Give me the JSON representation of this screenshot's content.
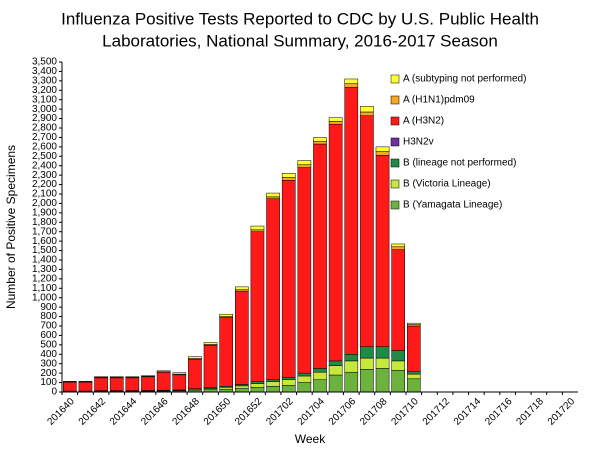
{
  "chart_data": {
    "type": "stacked-bar",
    "title": [
      "Influenza Positive Tests Reported to CDC by U.S. Public Health",
      "Laboratories, National Summary, 2016-2017 Season"
    ],
    "x_label": "Week",
    "y_label": "Number of Positive Specimens",
    "categories": [
      "201640",
      null,
      "201642",
      null,
      "201644",
      null,
      "201646",
      null,
      "201648",
      null,
      "201650",
      null,
      "201652",
      null,
      "201702",
      null,
      "201704",
      null,
      "201706",
      null,
      "201708",
      null,
      "201710",
      null,
      "201712",
      null,
      "201714",
      null,
      "201716",
      null,
      "201718",
      null,
      "201720"
    ],
    "series": [
      {
        "name": "A (subtyping not performed)",
        "color": "#ffff33",
        "values": [
          5,
          5,
          8,
          8,
          8,
          8,
          10,
          15,
          20,
          20,
          25,
          30,
          40,
          40,
          45,
          45,
          40,
          40,
          50,
          60,
          50,
          30,
          15,
          null,
          null,
          null,
          null,
          null,
          null,
          null,
          null,
          null,
          null
        ]
      },
      {
        "name": "A (H1N1)pdm09",
        "color": "#f5a623",
        "values": [
          3,
          3,
          5,
          5,
          5,
          5,
          6,
          8,
          10,
          10,
          10,
          15,
          20,
          20,
          30,
          30,
          30,
          30,
          40,
          40,
          40,
          30,
          15,
          null,
          null,
          null,
          null,
          null,
          null,
          null,
          null,
          null,
          null
        ]
      },
      {
        "name": "A (H3N2)",
        "color": "#ff1a1a",
        "values": [
          95,
          95,
          135,
          135,
          135,
          145,
          190,
          160,
          310,
          450,
          730,
          990,
          1590,
          1920,
          2090,
          2180,
          2380,
          2510,
          2830,
          2450,
          2030,
          1070,
          480,
          null,
          null,
          null,
          null,
          null,
          null,
          null,
          null,
          null,
          null
        ]
      },
      {
        "name": "H3N2v",
        "color": "#7030a0",
        "values": [
          0,
          0,
          0,
          0,
          0,
          0,
          0,
          0,
          0,
          0,
          0,
          0,
          0,
          0,
          0,
          0,
          0,
          0,
          0,
          0,
          0,
          0,
          0,
          null,
          null,
          null,
          null,
          null,
          null,
          null,
          null,
          null,
          null
        ]
      },
      {
        "name": "B (lineage not performed)",
        "color": "#1e8c45",
        "values": [
          2,
          2,
          3,
          3,
          3,
          3,
          4,
          4,
          5,
          8,
          10,
          15,
          20,
          20,
          25,
          30,
          40,
          50,
          70,
          120,
          120,
          110,
          30,
          null,
          null,
          null,
          null,
          null,
          null,
          null,
          null,
          null,
          null
        ]
      },
      {
        "name": "B (Victoria Lineage)",
        "color": "#c6e83a",
        "values": [
          3,
          3,
          4,
          4,
          4,
          5,
          5,
          6,
          10,
          12,
          20,
          25,
          40,
          50,
          60,
          70,
          80,
          100,
          120,
          120,
          110,
          100,
          50,
          null,
          null,
          null,
          null,
          null,
          null,
          null,
          null,
          null,
          null
        ]
      },
      {
        "name": "B (Yamagata Lineage)",
        "color": "#6cb33e",
        "values": [
          5,
          5,
          8,
          8,
          8,
          8,
          10,
          12,
          20,
          25,
          30,
          40,
          50,
          60,
          70,
          100,
          130,
          180,
          210,
          240,
          250,
          230,
          140,
          null,
          null,
          null,
          null,
          null,
          null,
          null,
          null,
          null,
          null
        ]
      }
    ],
    "ylim": [
      0,
      3500
    ],
    "yticks": [
      0,
      100,
      200,
      300,
      400,
      500,
      600,
      700,
      800,
      900,
      {
        "value": 1000,
        "label": "1,000"
      },
      {
        "value": 1100,
        "label": "1,100"
      },
      {
        "value": 1200,
        "label": "1,200"
      },
      {
        "value": 1300,
        "label": "1,300"
      },
      {
        "value": 1400,
        "label": "1,400"
      },
      {
        "value": 1500,
        "label": "1,500"
      },
      {
        "value": 1600,
        "label": "1,600"
      },
      {
        "value": 1700,
        "label": "1,700"
      },
      {
        "value": 1800,
        "label": "1,800"
      },
      {
        "value": 1900,
        "label": "1,900"
      },
      {
        "value": 2000,
        "label": "2,000"
      },
      {
        "value": 2100,
        "label": "2,100"
      },
      {
        "value": 2200,
        "label": "2,200"
      },
      {
        "value": 2300,
        "label": "2,300"
      },
      {
        "value": 2400,
        "label": "2,400"
      },
      {
        "value": 2500,
        "label": "2,500"
      },
      {
        "value": 2600,
        "label": "2,600"
      },
      {
        "value": 2700,
        "label": "2,700"
      },
      {
        "value": 2800,
        "label": "2,800"
      },
      {
        "value": 2900,
        "label": "2,900"
      },
      {
        "value": 3000,
        "label": "3,000"
      },
      {
        "value": 3100,
        "label": "3,100"
      },
      {
        "value": 3200,
        "label": "3,200"
      },
      {
        "value": 3300,
        "label": "3,300"
      },
      {
        "value": 3400,
        "label": "3,400"
      },
      {
        "value": 3500,
        "label": "3,500"
      }
    ],
    "legend": "top-right"
  }
}
